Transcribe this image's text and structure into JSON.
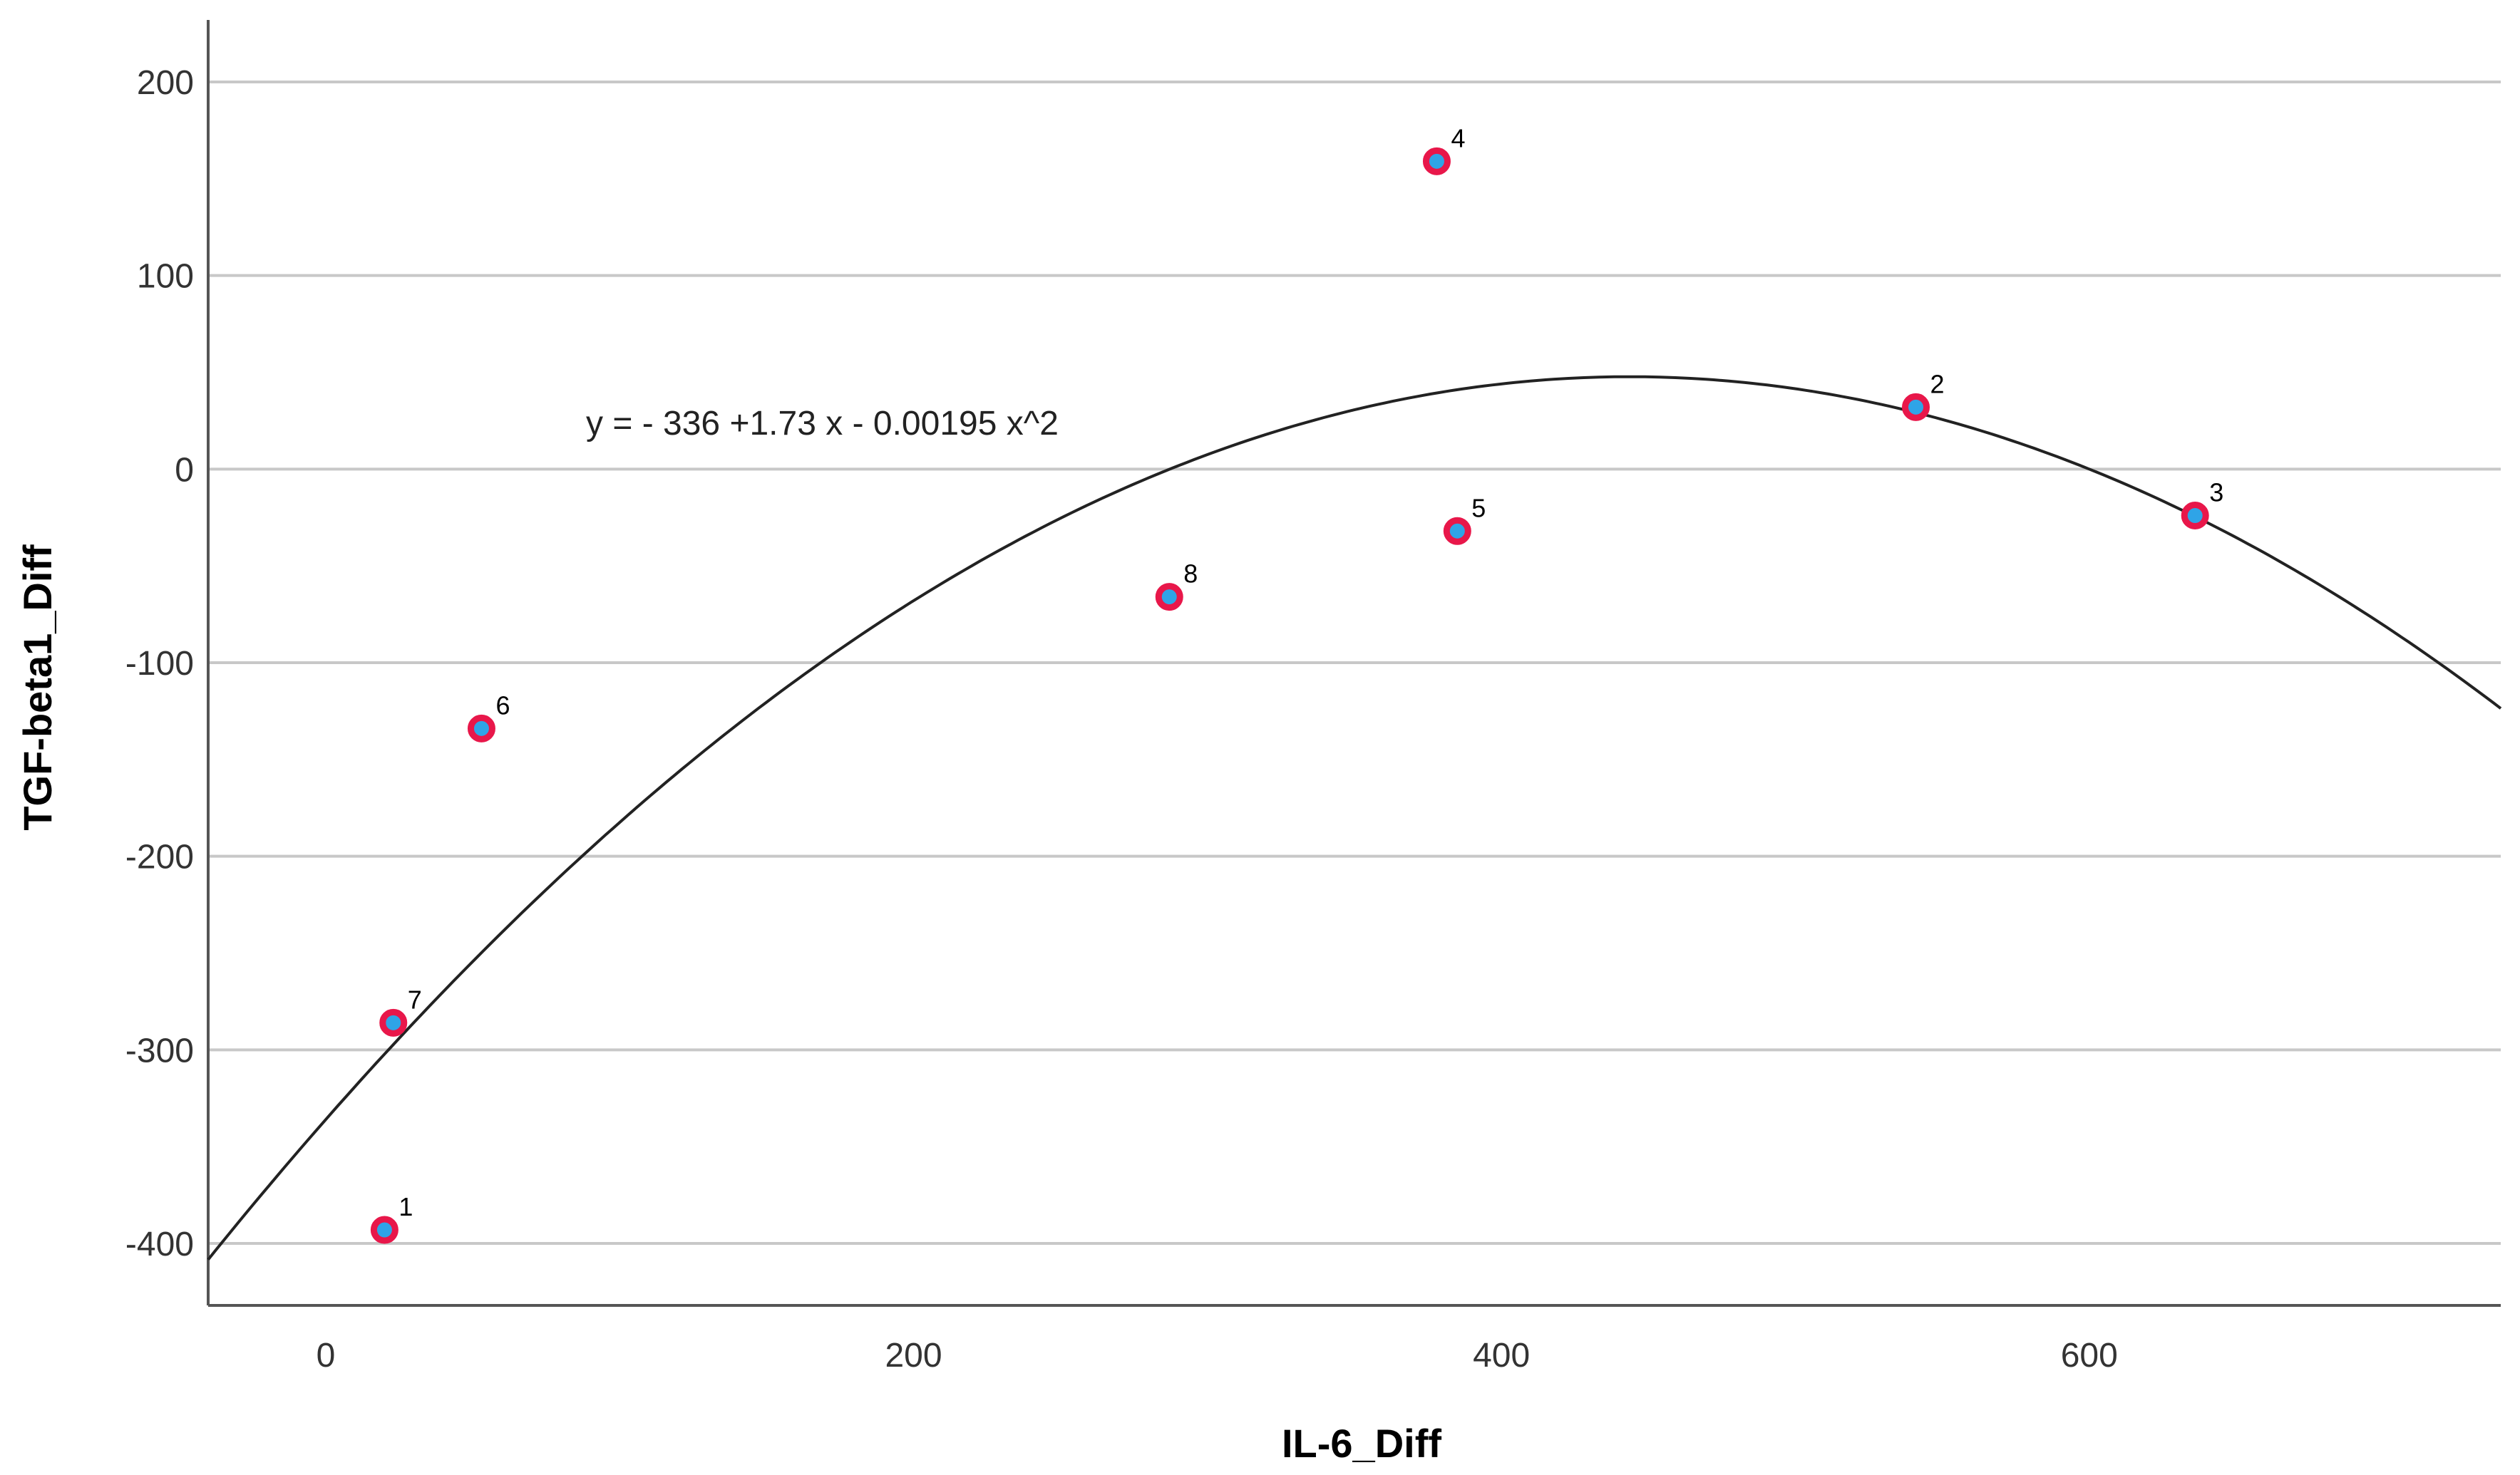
{
  "chart_data": {
    "type": "scatter",
    "xlabel": "IL-6_Diff",
    "ylabel": "TGF-beta1_Diff",
    "xlim": [
      -40,
      740
    ],
    "ylim": [
      -432,
      232
    ],
    "xticks": [
      0,
      200,
      400,
      600
    ],
    "yticks": [
      200,
      100,
      0,
      -100,
      -200,
      -300,
      -400
    ],
    "grid": "horizontal",
    "points": [
      {
        "label": "1",
        "x": 20,
        "y": -393
      },
      {
        "label": "2",
        "x": 541,
        "y": 32
      },
      {
        "label": "3",
        "x": 636,
        "y": -24
      },
      {
        "label": "4",
        "x": 378,
        "y": 159
      },
      {
        "label": "5",
        "x": 385,
        "y": -32
      },
      {
        "label": "6",
        "x": 53,
        "y": -134
      },
      {
        "label": "7",
        "x": 23,
        "y": -286
      },
      {
        "label": "8",
        "x": 287,
        "y": -66
      }
    ],
    "fit": {
      "equation": "y = - 336 +1.73 x - 0.00195 x^2",
      "coefficients": [
        -336,
        1.73,
        -0.00195
      ]
    },
    "colors": {
      "marker_edge": "#e8174a",
      "marker_fill": "#2fa4e7",
      "curve": "#222222",
      "grid": "#c8c8c8",
      "axis": "#555555"
    }
  }
}
